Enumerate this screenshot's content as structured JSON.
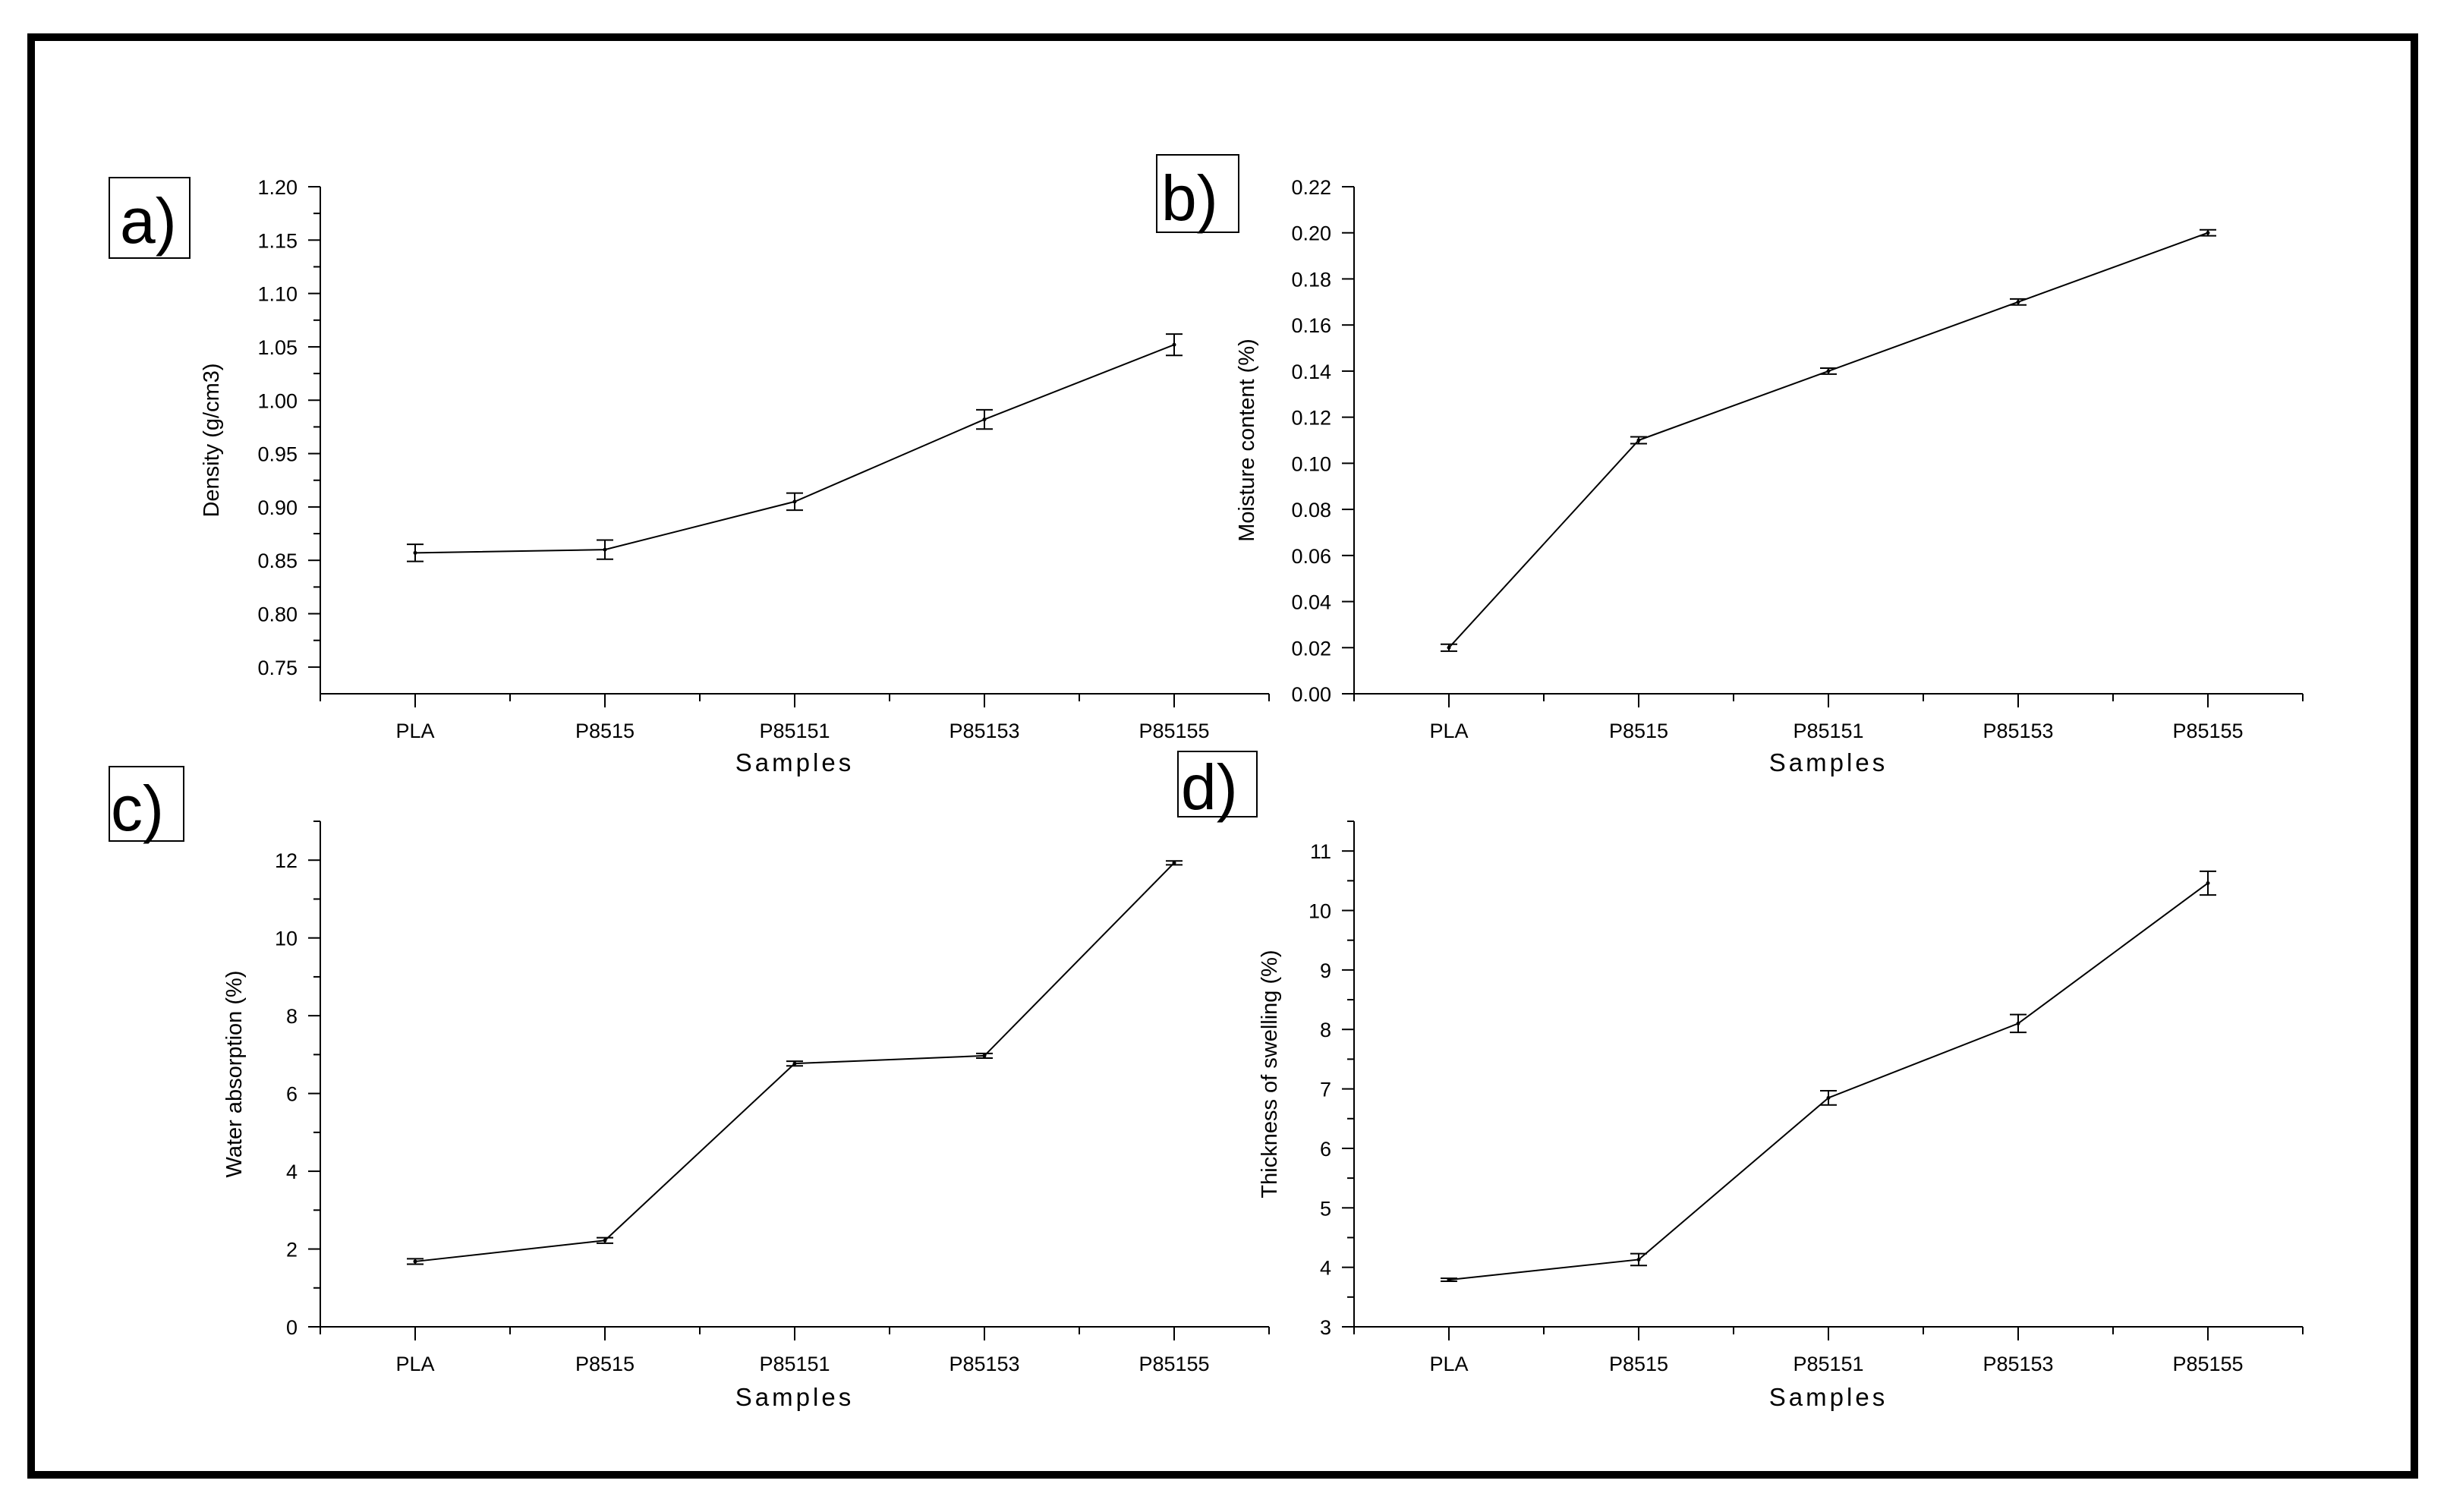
{
  "chart_data": [
    {
      "type": "line",
      "panel": "a)",
      "categories": [
        "PLA",
        "P8515",
        "P85151",
        "P85153",
        "P85155"
      ],
      "values": [
        0.857,
        0.86,
        0.905,
        0.982,
        1.052
      ],
      "errors": [
        0.008,
        0.009,
        0.008,
        0.009,
        0.01
      ],
      "xlabel": "Samples",
      "ylabel": "Density (g/cm3)",
      "ylim": [
        0.725,
        1.2
      ],
      "yticks": [
        0.75,
        0.8,
        0.85,
        0.9,
        0.95,
        1.0,
        1.05,
        1.1,
        1.15,
        1.2
      ],
      "ytick_labels": [
        "0.75",
        "0.80",
        "0.85",
        "0.90",
        "0.95",
        "1.00",
        "1.05",
        "1.10",
        "1.15",
        "1.20"
      ],
      "yminor": [
        0.775,
        0.825,
        0.875,
        0.925,
        0.975,
        1.025,
        1.075,
        1.125,
        1.175
      ],
      "grid": false
    },
    {
      "type": "line",
      "panel": "b)",
      "categories": [
        "PLA",
        "P8515",
        "P85151",
        "P85153",
        "P85155"
      ],
      "values": [
        0.02,
        0.11,
        0.14,
        0.17,
        0.2
      ],
      "errors": [
        0.0015,
        0.0015,
        0.0013,
        0.0013,
        0.0013
      ],
      "xlabel": "Samples",
      "ylabel": "Moisture content  (%)",
      "ylim": [
        0,
        0.22
      ],
      "yticks": [
        0.0,
        0.02,
        0.04,
        0.06,
        0.08,
        0.1,
        0.12,
        0.14,
        0.16,
        0.18,
        0.2,
        0.22
      ],
      "ytick_labels": [
        "0.00",
        "0.02",
        "0.04",
        "0.06",
        "0.08",
        "0.10",
        "0.12",
        "0.14",
        "0.16",
        "0.18",
        "0.20",
        "0.22"
      ],
      "yminor": [],
      "grid": false
    },
    {
      "type": "line",
      "panel": "c)",
      "categories": [
        "PLA",
        "P8515",
        "P85151",
        "P85153",
        "P85155"
      ],
      "values": [
        1.68,
        2.22,
        6.77,
        6.97,
        11.93
      ],
      "errors": [
        0.07,
        0.07,
        0.06,
        0.06,
        0.05
      ],
      "xlabel": "Samples",
      "ylabel": "Water absorption (%)",
      "ylim": [
        0,
        13
      ],
      "yticks": [
        0,
        2,
        4,
        6,
        8,
        10,
        12
      ],
      "ytick_labels": [
        "0",
        "2",
        "4",
        "6",
        "8",
        "10",
        "12"
      ],
      "yminor": [
        1,
        3,
        5,
        7,
        9,
        11,
        13
      ],
      "grid": false
    },
    {
      "type": "line",
      "panel": "d)",
      "categories": [
        "PLA",
        "P8515",
        "P85151",
        "P85153",
        "P85155"
      ],
      "values": [
        3.79,
        4.13,
        6.85,
        8.1,
        10.46
      ],
      "errors": [
        0.025,
        0.1,
        0.12,
        0.15,
        0.2
      ],
      "xlabel": "Samples",
      "ylabel": "Thickness of swelling (%)",
      "ylim": [
        3,
        11.5
      ],
      "yticks": [
        3,
        4,
        5,
        6,
        7,
        8,
        9,
        10,
        11
      ],
      "ytick_labels": [
        "3",
        "4",
        "5",
        "6",
        "7",
        "8",
        "9",
        "10",
        "11"
      ],
      "yminor": [
        3.5,
        4.5,
        5.5,
        6.5,
        7.5,
        8.5,
        9.5,
        10.5,
        11.5
      ],
      "grid": false
    }
  ]
}
